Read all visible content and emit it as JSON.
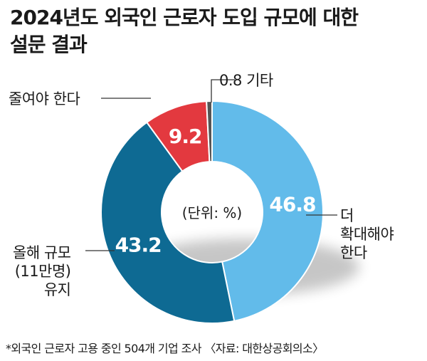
{
  "title": {
    "line1": "2024년도 외국인 근로자 도입 규모에 대한",
    "line2": "설문 결과"
  },
  "unit_label": "(단위: %)",
  "footer": {
    "note": "*외국인 근로자 고용 중인 504개 기업 조사",
    "source": "〈자료: 대한상공회의소〉"
  },
  "colors": {
    "expand": "#62bbea",
    "keep": "#0e6a93",
    "reduce": "#e3393f",
    "other": "#555555"
  },
  "chart_data": {
    "type": "pie",
    "donut": true,
    "title": "2024년도 외국인 근로자 도입 규모에 대한 설문 결과",
    "unit": "%",
    "slices": [
      {
        "label_lines": [
          "더",
          "확대해야",
          "한다"
        ],
        "value": 46.8,
        "value_label": "46.8",
        "color": "#62bbea"
      },
      {
        "label_lines": [
          "올해 규모",
          "(11만명)",
          "유지"
        ],
        "value": 43.2,
        "value_label": "43.2",
        "color": "#0e6a93"
      },
      {
        "label_lines": [
          "줄여야 한다"
        ],
        "value": 9.2,
        "value_label": "9.2",
        "color": "#e3393f"
      },
      {
        "label_lines": [
          "기타"
        ],
        "value": 0.8,
        "value_label": "0.8",
        "color": "#555555"
      }
    ]
  }
}
